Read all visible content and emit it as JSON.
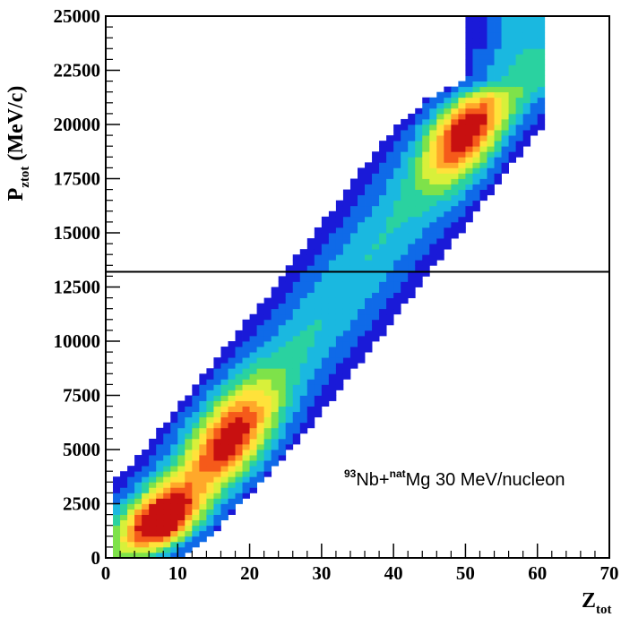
{
  "chart_data": {
    "type": "heatmap",
    "x_axis": {
      "label_main": "Z",
      "label_sub": "tot",
      "range": [
        0,
        70
      ],
      "ticks": [
        0,
        10,
        20,
        30,
        40,
        50,
        60,
        70
      ]
    },
    "y_axis": {
      "label_main": "P",
      "label_sub": "ztot",
      "label_unit": " (MeV/c)",
      "range": [
        0,
        25000
      ],
      "ticks": [
        0,
        2500,
        5000,
        7500,
        10000,
        12500,
        15000,
        17500,
        20000,
        22500,
        25000
      ]
    },
    "reference_line": {
      "orientation": "horizontal",
      "y": 13200,
      "x_range": [
        0,
        70
      ]
    },
    "annotation": {
      "sup1": "93",
      "text1": "Nb+",
      "sup2": "nat",
      "text2": "Mg 30 MeV/nucleon"
    },
    "colormap": [
      "#1a1ad8",
      "#0f6ae8",
      "#1ab8e0",
      "#2ad2a0",
      "#7ee24a",
      "#d8f03a",
      "#ffe23a",
      "#ffa82a",
      "#f55a1a",
      "#c81010"
    ],
    "bin_size": {
      "z": 1,
      "p": 250
    },
    "density_model": {
      "populations": [
        {
          "z0": 9,
          "p0": 1500,
          "width_z": 4.5,
          "width_p": 1200,
          "weight": 1.0,
          "z_max": 17,
          "p_max": 4200
        },
        {
          "z0": 18,
          "p0": 5200,
          "width_z": 5.5,
          "width_p": 2200,
          "weight": 0.72,
          "z_max": 30,
          "p_max": 9500
        },
        {
          "z0": 50,
          "p0": 19700,
          "width_z": 4.5,
          "width_p": 2000,
          "weight": 0.75,
          "z_max": 61,
          "p_max": 22000
        }
      ],
      "ridge": [
        [
          0,
          0
        ],
        [
          5,
          1300
        ],
        [
          10,
          3000
        ],
        [
          15,
          4800
        ],
        [
          20,
          6800
        ],
        [
          25,
          8900
        ],
        [
          30,
          11000
        ],
        [
          35,
          13200
        ],
        [
          40,
          15400
        ],
        [
          45,
          17700
        ],
        [
          50,
          19700
        ],
        [
          55,
          21200
        ],
        [
          60,
          22000
        ]
      ],
      "ridge_width_z": 5,
      "ridge_level": 0.3,
      "z_min": 1,
      "z_max": 61
    }
  }
}
